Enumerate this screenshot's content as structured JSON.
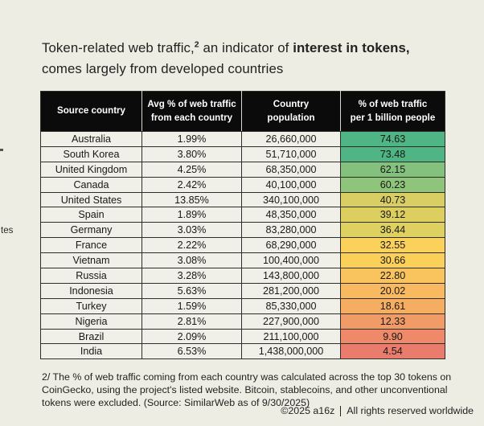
{
  "page": {
    "background": "#eeede4"
  },
  "title": {
    "line1_pre": "Token-related web traffic,",
    "line1_sup": "2",
    "line1_mid": " an indicator of ",
    "line1_bold": "interest in tokens,",
    "line2": "comes largely from developed countries"
  },
  "table": {
    "headers": [
      "Source country",
      "Avg % of web traffic\nfrom each country",
      "Country\npopulation",
      "% of web traffic\nper 1 billion people"
    ],
    "rows": [
      {
        "country": "Australia",
        "traffic_pct": "1.99%",
        "population": "26,660,000",
        "per_billion": "74.63",
        "color": "#4fb584"
      },
      {
        "country": "South Korea",
        "traffic_pct": "3.80%",
        "population": "51,710,000",
        "per_billion": "73.48",
        "color": "#4fb584"
      },
      {
        "country": "United Kingdom",
        "traffic_pct": "4.25%",
        "population": "68,350,000",
        "per_billion": "62.15",
        "color": "#84c07e"
      },
      {
        "country": "Canada",
        "traffic_pct": "2.42%",
        "population": "40,100,000",
        "per_billion": "60.23",
        "color": "#8fc57a"
      },
      {
        "country": "United States",
        "traffic_pct": "13.85%",
        "population": "340,100,000",
        "per_billion": "40.73",
        "color": "#d8ce63"
      },
      {
        "country": "Spain",
        "traffic_pct": "1.89%",
        "population": "48,350,000",
        "per_billion": "39.12",
        "color": "#dccf60"
      },
      {
        "country": "Germany",
        "traffic_pct": "3.03%",
        "population": "83,280,000",
        "per_billion": "36.44",
        "color": "#ded15f"
      },
      {
        "country": "France",
        "traffic_pct": "2.22%",
        "population": "68,290,000",
        "per_billion": "32.55",
        "color": "#fad25b"
      },
      {
        "country": "Vietnam",
        "traffic_pct": "3.08%",
        "population": "100,400,000",
        "per_billion": "30.66",
        "color": "#fbd058"
      },
      {
        "country": "Russia",
        "traffic_pct": "3.28%",
        "population": "143,800,000",
        "per_billion": "22.80",
        "color": "#f9c45d"
      },
      {
        "country": "Indonesia",
        "traffic_pct": "5.63%",
        "population": "281,200,000",
        "per_billion": "20.02",
        "color": "#f8b960"
      },
      {
        "country": "Turkey",
        "traffic_pct": "1.59%",
        "population": "85,330,000",
        "per_billion": "18.61",
        "color": "#f5ad62"
      },
      {
        "country": "Nigeria",
        "traffic_pct": "2.81%",
        "population": "227,900,000",
        "per_billion": "12.33",
        "color": "#f19b67"
      },
      {
        "country": "Brazil",
        "traffic_pct": "2.09%",
        "population": "211,100,000",
        "per_billion": "9.90",
        "color": "#ee8a69"
      },
      {
        "country": "India",
        "traffic_pct": "6.53%",
        "population": "1,438,000,000",
        "per_billion": "4.54",
        "color": "#e97c6d"
      }
    ]
  },
  "footnote": {
    "lines": [
      "2/ The % of web traffic coming from each country was calculated across the top 30 tokens on",
      "CoinGecko, using the project's listed website. Bitcoin, stablecoins, and other unconventional",
      "tokens were excluded. (Source: SimilarWeb as of 9/30/2025)"
    ]
  },
  "footer": {
    "copyright": "©2025 a16z",
    "rights": "All rights reserved worldwide"
  },
  "edge_fragments": {
    "text": "tes"
  },
  "chart_data": {
    "type": "table",
    "title": "Token-related web traffic, an indicator of interest in tokens, comes largely from developed countries",
    "columns": [
      "Source country",
      "Avg % of web traffic from each country",
      "Country population",
      "% of web traffic per 1 billion people"
    ],
    "rows": [
      [
        "Australia",
        1.99,
        26660000,
        74.63
      ],
      [
        "South Korea",
        3.8,
        51710000,
        73.48
      ],
      [
        "United Kingdom",
        4.25,
        68350000,
        62.15
      ],
      [
        "Canada",
        2.42,
        40100000,
        60.23
      ],
      [
        "United States",
        13.85,
        340100000,
        40.73
      ],
      [
        "Spain",
        1.89,
        48350000,
        39.12
      ],
      [
        "Germany",
        3.03,
        83280000,
        36.44
      ],
      [
        "France",
        2.22,
        68290000,
        32.55
      ],
      [
        "Vietnam",
        3.08,
        100400000,
        30.66
      ],
      [
        "Russia",
        3.28,
        143800000,
        22.8
      ],
      [
        "Indonesia",
        5.63,
        281200000,
        20.02
      ],
      [
        "Turkey",
        1.59,
        85330000,
        18.61
      ],
      [
        "Nigeria",
        2.81,
        227900000,
        12.33
      ],
      [
        "Brazil",
        2.09,
        211100000,
        9.9
      ],
      [
        "India",
        6.53,
        1438000000,
        4.54
      ]
    ],
    "heat_column": "% of web traffic per 1 billion people",
    "heat_scale": "green (high) to red (low)",
    "source": "SimilarWeb as of 9/30/2025",
    "legend_position": "none",
    "grid": "full cell borders"
  }
}
